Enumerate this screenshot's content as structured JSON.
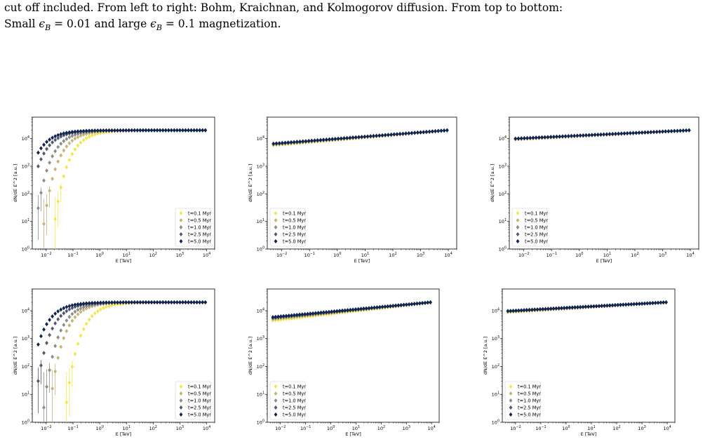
{
  "caption": {
    "line1": "cut off included. From left to right: Bohm, Kraichnan, and Kolmogorov diffusion. From top to bottom:",
    "line2_pre": "Small ",
    "line2_eps1": "ϵ",
    "line2_sub1": "B",
    "line2_mid": " = 0.01 and large ",
    "line2_eps2": "ϵ",
    "line2_sub2": "B",
    "line2_post": " = 0.1 magnetization."
  },
  "chart_data": [
    {
      "id": "bohm-small",
      "type": "scatter",
      "title": "",
      "xlabel": "E [TeV]",
      "ylabel": "dN/dE E^2 [a.u.]",
      "xscale": "log",
      "yscale": "log",
      "xlim": [
        0.003,
        20000
      ],
      "ylim": [
        1,
        60000
      ],
      "legend": "lower-right",
      "grid": false,
      "sat": 20000,
      "beta": 0.9,
      "series": [
        {
          "name": "t=0.1 Myr",
          "color": "#f4e54a",
          "ec": 0.2
        },
        {
          "name": "t=0.5 Myr",
          "color": "#c6b27a",
          "ec": 0.08
        },
        {
          "name": "t=1.0 Myr",
          "color": "#8c8c88",
          "ec": 0.04
        },
        {
          "name": "t=2.5 Myr",
          "color": "#52576e",
          "ec": 0.017
        },
        {
          "name": "t=5.0 Myr",
          "color": "#0f2350",
          "ec": 0.01
        }
      ]
    },
    {
      "id": "kraichnan-small",
      "type": "scatter",
      "title": "",
      "xlabel": "E [TeV]",
      "ylabel": "dN/dE E^2 [a.u.]",
      "xscale": "log",
      "yscale": "log",
      "xlim": [
        0.003,
        20000
      ],
      "ylim": [
        1,
        60000
      ],
      "legend": "lower-left",
      "grid": false,
      "sat": 20000,
      "slope": 0.077,
      "series": [
        {
          "name": "t=0.1 Myr",
          "color": "#f4e54a",
          "shift": -0.06
        },
        {
          "name": "t=0.5 Myr",
          "color": "#c6b27a",
          "shift": -0.04
        },
        {
          "name": "t=1.0 Myr",
          "color": "#8c8c88",
          "shift": -0.02
        },
        {
          "name": "t=2.5 Myr",
          "color": "#52576e",
          "shift": -0.01
        },
        {
          "name": "t=5.0 Myr",
          "color": "#0f2350",
          "shift": 0
        }
      ]
    },
    {
      "id": "kolmogorov-small",
      "type": "scatter",
      "title": "",
      "xlabel": "E [TeV]",
      "ylabel": "dN/dE E^2 [a.u.]",
      "xscale": "log",
      "yscale": "log",
      "xlim": [
        0.003,
        20000
      ],
      "ylim": [
        1,
        60000
      ],
      "legend": "lower-left",
      "grid": false,
      "sat": 20000,
      "slope": 0.048,
      "series": [
        {
          "name": "t=0.1 Myr",
          "color": "#f4e54a",
          "shift": -0.03
        },
        {
          "name": "t=0.5 Myr",
          "color": "#c6b27a",
          "shift": -0.02
        },
        {
          "name": "t=1.0 Myr",
          "color": "#8c8c88",
          "shift": -0.01
        },
        {
          "name": "t=2.5 Myr",
          "color": "#52576e",
          "shift": -0.005
        },
        {
          "name": "t=5.0 Myr",
          "color": "#0f2350",
          "shift": 0
        }
      ]
    },
    {
      "id": "bohm-large",
      "type": "scatter",
      "title": "",
      "xlabel": "E [TeV]",
      "ylabel": "dN/dE E^2 [a.u.]",
      "xscale": "log",
      "yscale": "log",
      "xlim": [
        0.003,
        20000
      ],
      "ylim": [
        1,
        60000
      ],
      "legend": "lower-right",
      "grid": false,
      "sat": 20000,
      "beta": 0.9,
      "series": [
        {
          "name": "t=0.1 Myr",
          "color": "#f4e54a",
          "ec": 0.6
        },
        {
          "name": "t=0.5 Myr",
          "color": "#c6b27a",
          "ec": 0.15
        },
        {
          "name": "t=1.0 Myr",
          "color": "#8c8c88",
          "ec": 0.09
        },
        {
          "name": "t=2.5 Myr",
          "color": "#52576e",
          "ec": 0.04
        },
        {
          "name": "t=5.0 Myr",
          "color": "#0f2350",
          "ec": 0.02
        }
      ]
    },
    {
      "id": "kraichnan-large",
      "type": "scatter",
      "title": "",
      "xlabel": "E [TeV]",
      "ylabel": "dN/dE E^2 [a.u.]",
      "xscale": "log",
      "yscale": "log",
      "xlim": [
        0.003,
        20000
      ],
      "ylim": [
        1,
        60000
      ],
      "legend": "lower-left",
      "grid": false,
      "sat": 20000,
      "slope": 0.085,
      "series": [
        {
          "name": "t=0.1 Myr",
          "color": "#f4e54a",
          "shift": -0.12
        },
        {
          "name": "t=0.5 Myr",
          "color": "#c6b27a",
          "shift": -0.07
        },
        {
          "name": "t=1.0 Myr",
          "color": "#8c8c88",
          "shift": -0.04
        },
        {
          "name": "t=2.5 Myr",
          "color": "#52576e",
          "shift": -0.02
        },
        {
          "name": "t=5.0 Myr",
          "color": "#0f2350",
          "shift": 0
        }
      ]
    },
    {
      "id": "kolmogorov-large",
      "type": "scatter",
      "title": "",
      "xlabel": "E [TeV]",
      "ylabel": "dN/dE E^2 [a.u.]",
      "xscale": "log",
      "yscale": "log",
      "xlim": [
        0.003,
        20000
      ],
      "ylim": [
        1,
        60000
      ],
      "legend": "lower-left",
      "grid": false,
      "sat": 20000,
      "slope": 0.05,
      "series": [
        {
          "name": "t=0.1 Myr",
          "color": "#f4e54a",
          "shift": -0.04
        },
        {
          "name": "t=0.5 Myr",
          "color": "#c6b27a",
          "shift": -0.025
        },
        {
          "name": "t=1.0 Myr",
          "color": "#8c8c88",
          "shift": -0.012
        },
        {
          "name": "t=2.5 Myr",
          "color": "#52576e",
          "shift": -0.006
        },
        {
          "name": "t=5.0 Myr",
          "color": "#0f2350",
          "shift": 0
        }
      ]
    }
  ]
}
